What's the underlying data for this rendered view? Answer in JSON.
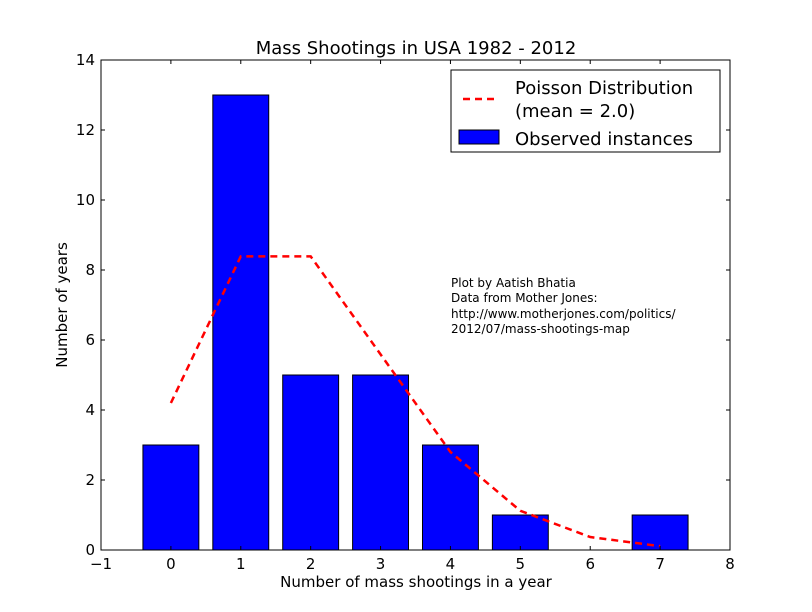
{
  "chart_data": {
    "type": "bar",
    "title": "Mass Shootings in USA 1982 - 2012",
    "xlabel": "Number of mass shootings in a year",
    "ylabel": "Number of years",
    "xlim": [
      -1,
      8
    ],
    "ylim": [
      0,
      14
    ],
    "xticks": [
      -1,
      0,
      1,
      2,
      3,
      4,
      5,
      6,
      7,
      8
    ],
    "xtick_labels": [
      "−1",
      "0",
      "1",
      "2",
      "3",
      "4",
      "5",
      "6",
      "7",
      "8"
    ],
    "yticks": [
      0,
      2,
      4,
      6,
      8,
      10,
      12,
      14
    ],
    "grid": false,
    "legend_placement": "top-right",
    "series": [
      {
        "name": "Observed instances",
        "type": "bar",
        "color": "#0000ff",
        "x": [
          0,
          1,
          2,
          3,
          4,
          5,
          6,
          7
        ],
        "values": [
          3,
          13,
          5,
          5,
          3,
          1,
          0,
          1
        ],
        "bar_width": 0.8
      },
      {
        "name": "Poisson Distribution\n(mean = 2.0)",
        "name_lines": [
          "Poisson Distribution",
          "(mean = 2.0)"
        ],
        "type": "line",
        "style": "dashed",
        "color": "#ff0000",
        "x": [
          0,
          1,
          2,
          3,
          4,
          5,
          6,
          7
        ],
        "values": [
          4.2,
          8.39,
          8.39,
          5.59,
          2.8,
          1.12,
          0.37,
          0.11
        ]
      }
    ],
    "annotation": [
      "Plot by Aatish Bhatia",
      "Data from Mother Jones:",
      "http://www.motherjones.com/politics/",
      "2012/07/mass-shootings-map"
    ]
  }
}
